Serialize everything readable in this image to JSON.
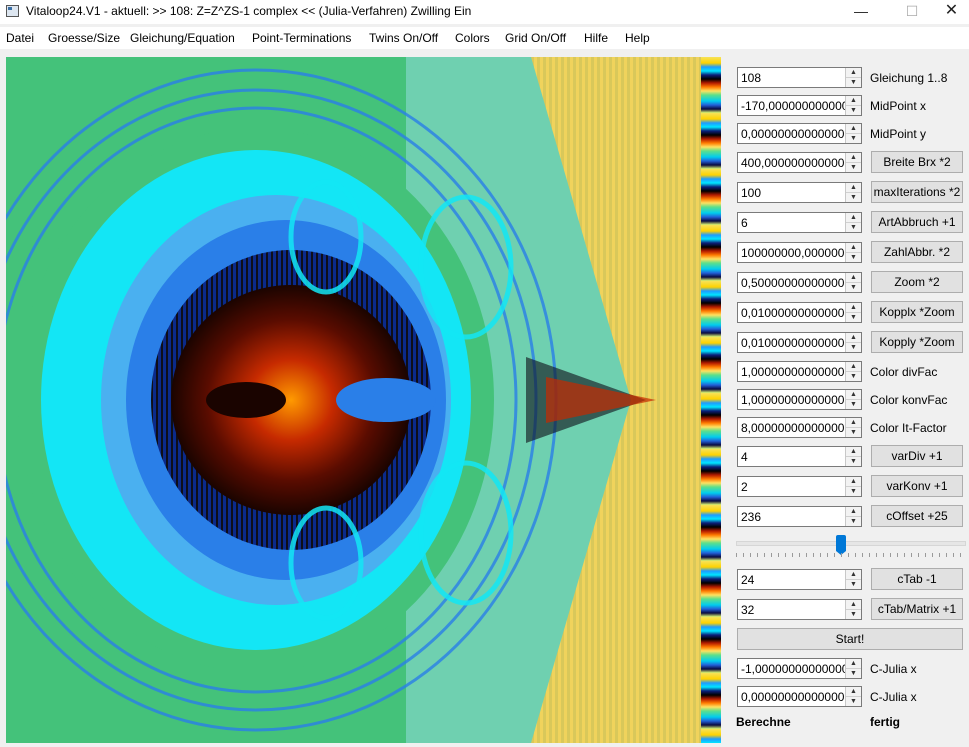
{
  "window": {
    "title": "Vitaloop24.V1 - aktuell: >> 108: Z=Z^ZS-1 complex <<  (Julia-Verfahren)  Zwilling Ein",
    "minimize": "—",
    "maximize": "☐",
    "close": "✕"
  },
  "menu": [
    "Datei",
    "Groesse/Size",
    "Gleichung/Equation",
    "Point-Terminations",
    "Twins On/Off",
    "Colors",
    "Grid On/Off",
    "Hilfe",
    "Help"
  ],
  "params": [
    {
      "value": "108",
      "label": "Gleichung 1..8",
      "is_button": false
    },
    {
      "value": "-170,00000000000000",
      "label": "MidPoint x",
      "is_button": false
    },
    {
      "value": "0,0000000000000000",
      "label": "MidPoint y",
      "is_button": false
    },
    {
      "value": "400,00000000000000",
      "label": "Breite Brx *2",
      "is_button": true
    },
    {
      "value": "100",
      "label": "maxIterations *2",
      "is_button": true
    },
    {
      "value": "6",
      "label": "ArtAbbruch +1",
      "is_button": true
    },
    {
      "value": "100000000,00000000",
      "label": "ZahlAbbr. *2",
      "is_button": true
    },
    {
      "value": "0,5000000000000000",
      "label": "Zoom *2",
      "is_button": true
    },
    {
      "value": "0,0100000000000000",
      "label": "Kopplx *Zoom",
      "is_button": true
    },
    {
      "value": "0,0100000000000000",
      "label": "Kopply *Zoom",
      "is_button": true
    },
    {
      "value": "1,0000000000000000",
      "label": "Color divFac",
      "is_button": false
    },
    {
      "value": "1,0000000000000000",
      "label": "Color konvFac",
      "is_button": false
    },
    {
      "value": "8,0000000000000000",
      "label": "Color It-Factor",
      "is_button": false
    },
    {
      "value": "4",
      "label": "varDiv +1",
      "is_button": true
    },
    {
      "value": "2",
      "label": "varKonv +1",
      "is_button": true
    },
    {
      "value": "236",
      "label": "cOffset +25",
      "is_button": true
    }
  ],
  "slider": {
    "value": 0.46
  },
  "params2": [
    {
      "value": "24",
      "label": "cTab -1",
      "is_button": true
    },
    {
      "value": "32",
      "label": "cTab/Matrix +1",
      "is_button": true
    }
  ],
  "start_label": "Start!",
  "julia": [
    {
      "value": "-1,0000000000000000",
      "label": "C-Julia x"
    },
    {
      "value": "0,0000000000000000",
      "label": "C-Julia x"
    }
  ],
  "status": {
    "left": "Berechne",
    "right": "fertig"
  },
  "colors": {
    "green": "#44c27a",
    "cyan": "#13e6f5",
    "blue": "#2a7fe8",
    "darkblue": "#0b2a8a",
    "red": "#8e1a00",
    "orange": "#ff8a00",
    "yellow": "#e6c84a"
  }
}
